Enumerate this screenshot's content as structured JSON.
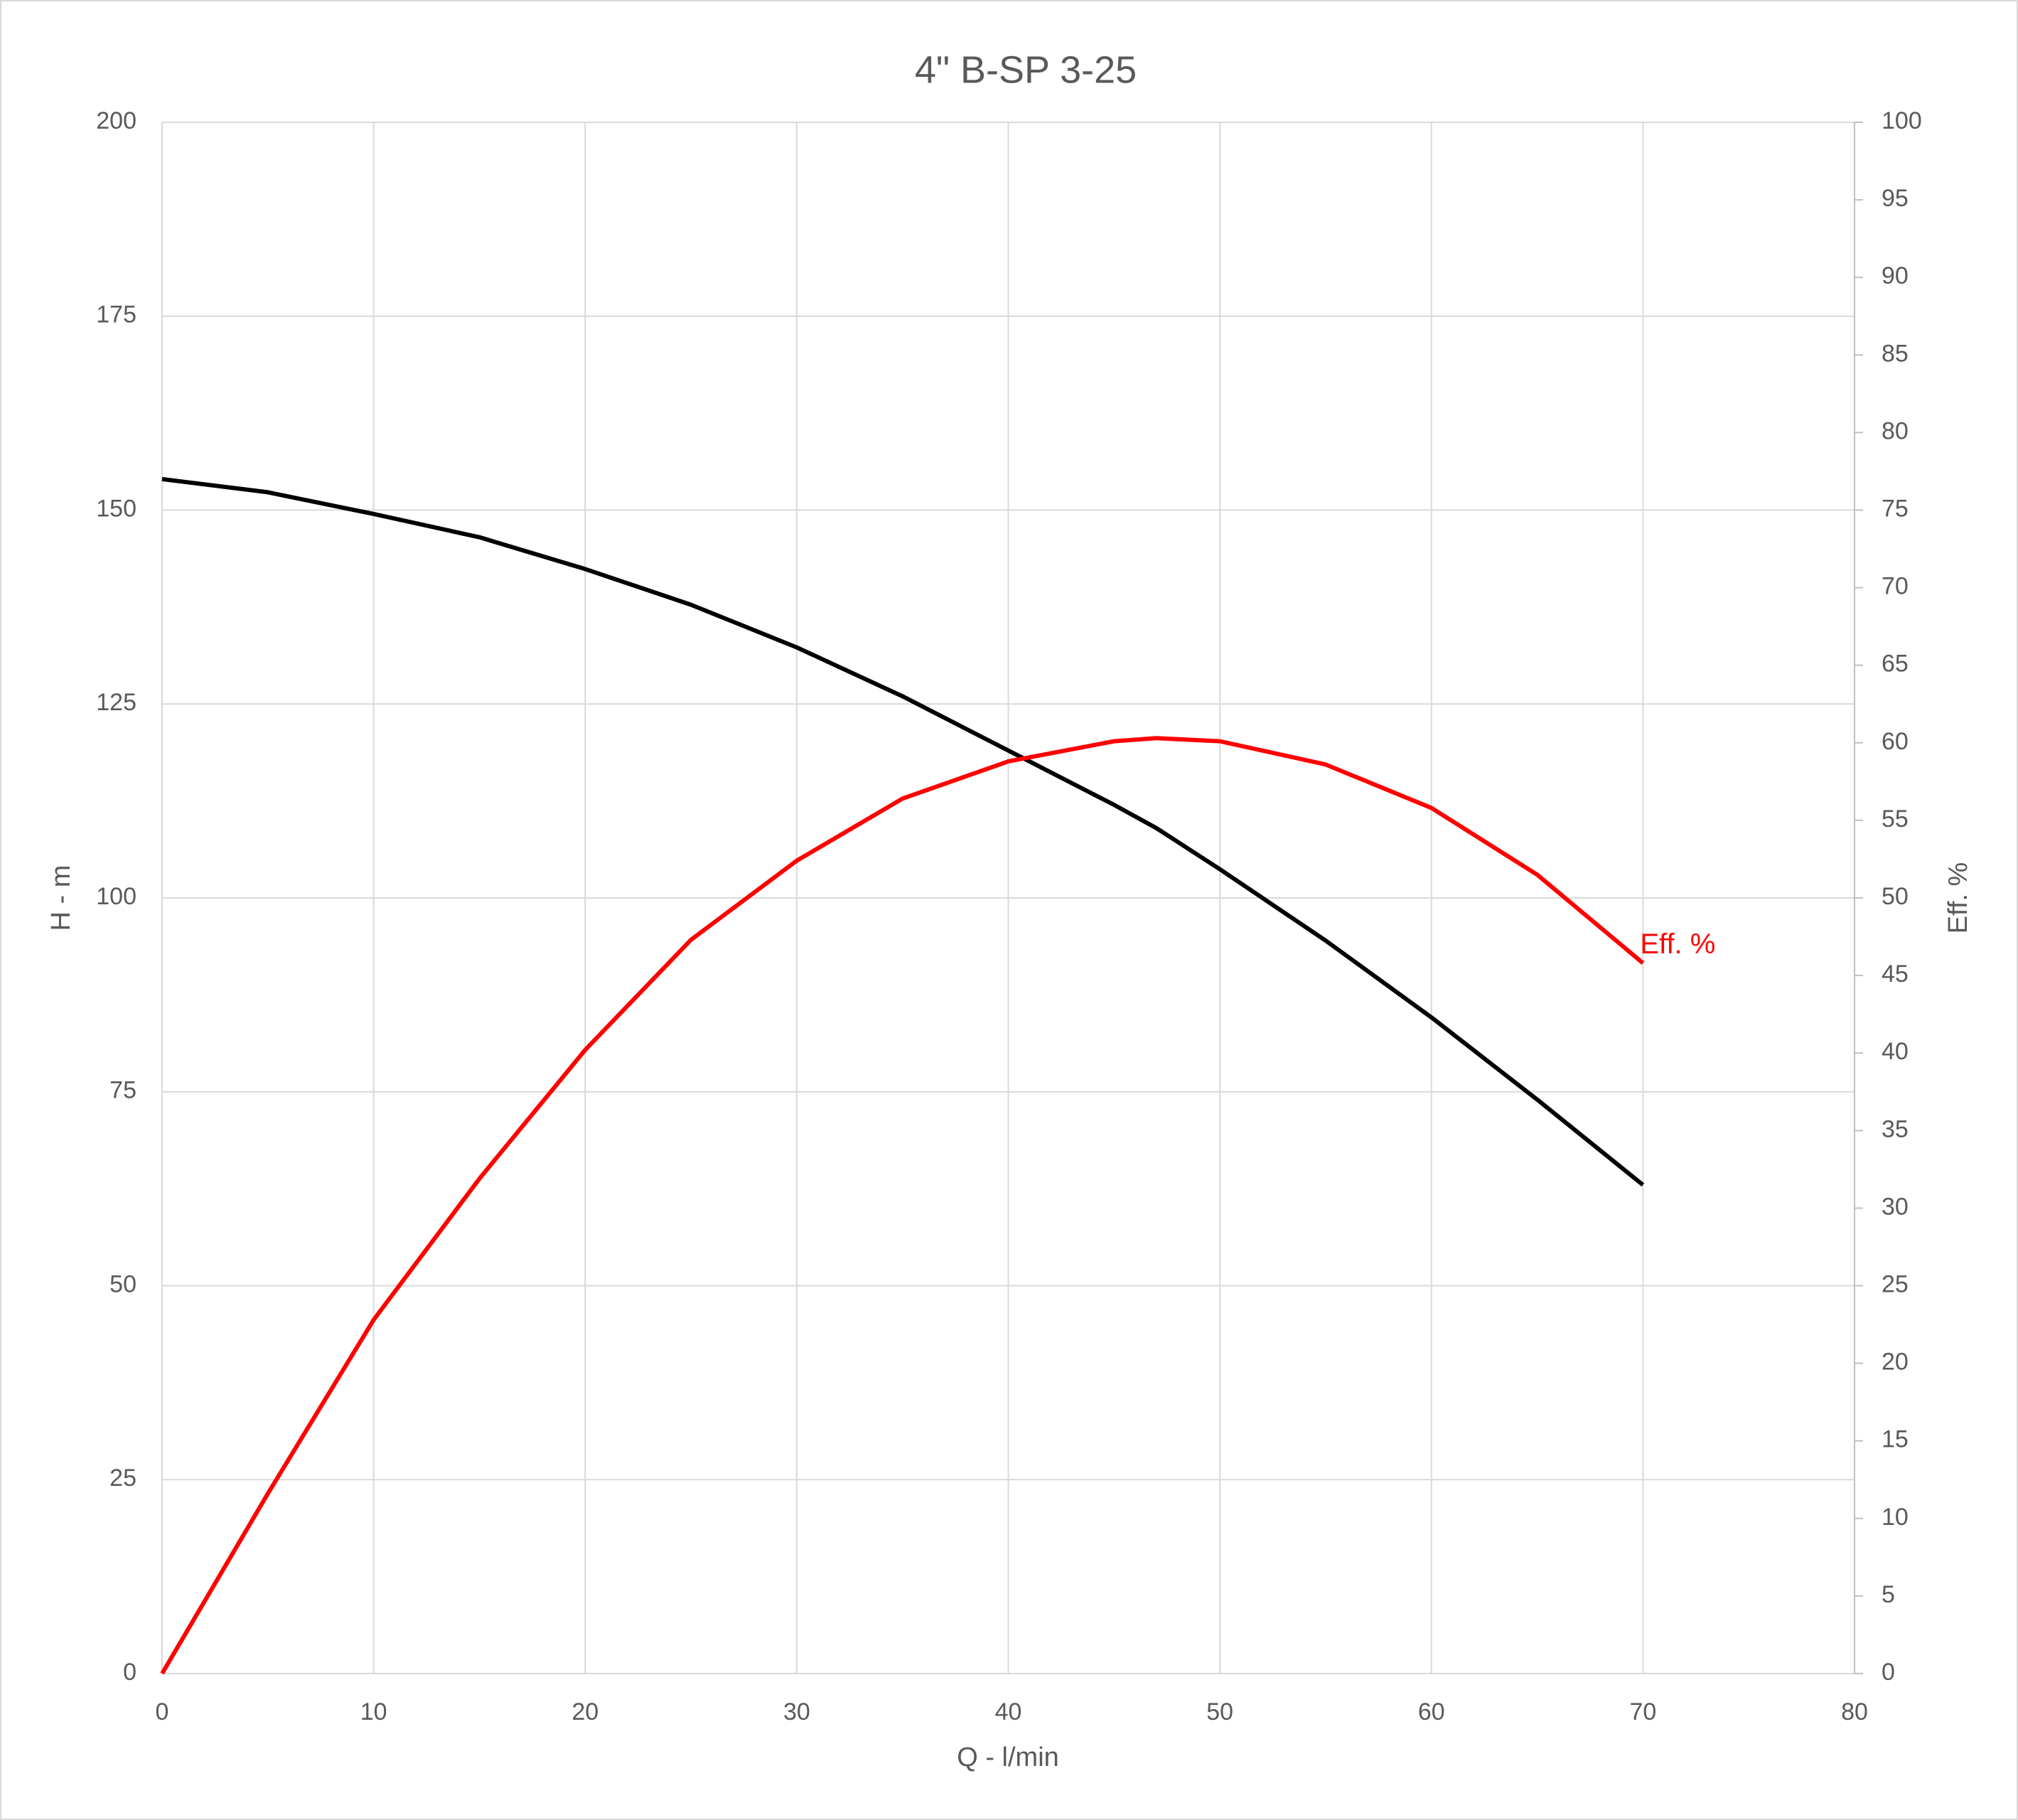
{
  "chart_data": {
    "type": "line",
    "title": "4\" B-SP 3-25",
    "xlabel": "Q - l/min",
    "ylabel": "H - m",
    "y2label": "Eff. %",
    "x": [
      0,
      5,
      10,
      15,
      20,
      25,
      30,
      35,
      40,
      45,
      47,
      50,
      55,
      60,
      65,
      70
    ],
    "series": [
      {
        "color": "#000000",
        "values": [
          154,
          152.3,
          149.5,
          146.5,
          142.4,
          137.8,
          132.3,
          126,
          119,
          112,
          109,
          103.7,
          94.5,
          84.6,
          74,
          63
        ]
      },
      {
        "name": "Eff. %",
        "color": "#ff0000",
        "axis": "y2",
        "values": [
          0,
          11.6,
          22.8,
          31.9,
          40.2,
          47.3,
          52.4,
          56.4,
          58.8,
          60.1,
          60.3,
          60.1,
          58.6,
          55.8,
          51.5,
          45.8
        ]
      }
    ],
    "xlim": [
      0,
      80
    ],
    "xticks": [
      0,
      10,
      20,
      30,
      40,
      50,
      60,
      70,
      80
    ],
    "ylim": [
      0,
      200
    ],
    "yticks": [
      0,
      25,
      50,
      75,
      100,
      125,
      150,
      175,
      200
    ],
    "y2lim": [
      0,
      100
    ],
    "y2ticks": [
      0,
      5,
      10,
      15,
      20,
      25,
      30,
      35,
      40,
      45,
      50,
      55,
      60,
      65,
      70,
      75,
      80,
      85,
      90,
      95,
      100
    ],
    "grid": true
  }
}
